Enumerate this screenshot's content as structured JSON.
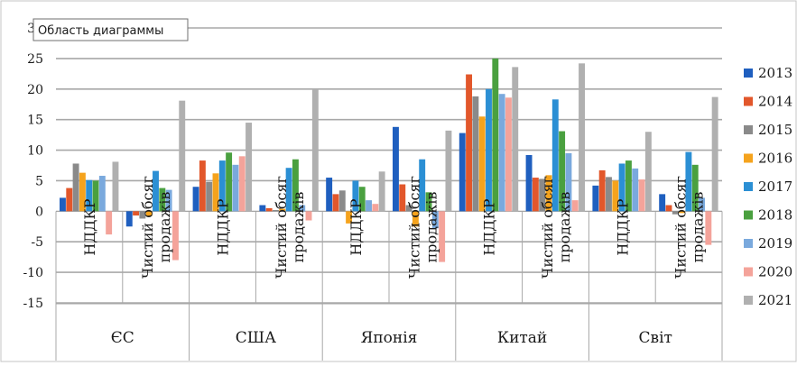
{
  "tooltip_label": "Область диаграммы",
  "chart_data": {
    "type": "bar",
    "ylim": [
      -15,
      30
    ],
    "y_ticks": [
      -15,
      -10,
      -5,
      0,
      5,
      10,
      15,
      20,
      25,
      30
    ],
    "grid": true,
    "legend_position": "right",
    "groups": [
      {
        "label": "ЄС",
        "categories": [
          "НДДКР",
          "Чистий обсяг продажів"
        ]
      },
      {
        "label": "США",
        "categories": [
          "НДДКР",
          "Чистий обсяг продажів"
        ]
      },
      {
        "label": "Японія",
        "categories": [
          "НДДКР",
          "Чистий обсяг продажів"
        ]
      },
      {
        "label": "Китай",
        "categories": [
          "НДДКР",
          "Чистий обсяг продажів"
        ]
      },
      {
        "label": "Світ",
        "categories": [
          "НДДКР",
          "Чистий обсяг продажів"
        ]
      }
    ],
    "series": [
      {
        "name": "2013",
        "color": "#1f5fbf",
        "values": [
          2.2,
          -2.5,
          4.0,
          1.0,
          5.5,
          13.8,
          12.8,
          9.2,
          4.2,
          2.8
        ]
      },
      {
        "name": "2014",
        "color": "#e2572b",
        "values": [
          3.8,
          -0.7,
          8.3,
          0.5,
          2.8,
          4.4,
          22.4,
          5.5,
          6.7,
          1.0
        ]
      },
      {
        "name": "2015",
        "color": "#8a8a8a",
        "values": [
          7.8,
          -1.2,
          4.8,
          0.2,
          3.4,
          1.0,
          18.8,
          5.3,
          5.6,
          -0.5
        ]
      },
      {
        "name": "2016",
        "color": "#f5a31d",
        "values": [
          6.3,
          -0.8,
          6.2,
          0.4,
          -2.0,
          -2.5,
          15.5,
          5.9,
          5.0,
          -0.3
        ]
      },
      {
        "name": "2017",
        "color": "#2b8fd4",
        "values": [
          5.1,
          6.6,
          8.3,
          7.1,
          5.0,
          8.5,
          20.0,
          18.3,
          7.8,
          9.7
        ]
      },
      {
        "name": "2018",
        "color": "#4aa03f",
        "values": [
          5.0,
          3.8,
          9.6,
          8.5,
          4.0,
          3.1,
          25.0,
          13.1,
          8.3,
          7.6
        ]
      },
      {
        "name": "2019",
        "color": "#7aa9dd",
        "values": [
          5.8,
          3.5,
          7.6,
          1.0,
          1.8,
          -2.8,
          19.2,
          9.5,
          7.0,
          2.2
        ]
      },
      {
        "name": "2020",
        "color": "#f4a39a",
        "values": [
          -3.8,
          -8.0,
          9.0,
          -1.5,
          1.2,
          -8.3,
          18.6,
          1.8,
          5.2,
          -5.5
        ]
      },
      {
        "name": "2021",
        "color": "#b0b0b0",
        "values": [
          8.1,
          18.1,
          14.5,
          20.0,
          6.5,
          13.2,
          23.6,
          24.2,
          13.0,
          18.7
        ]
      }
    ]
  }
}
